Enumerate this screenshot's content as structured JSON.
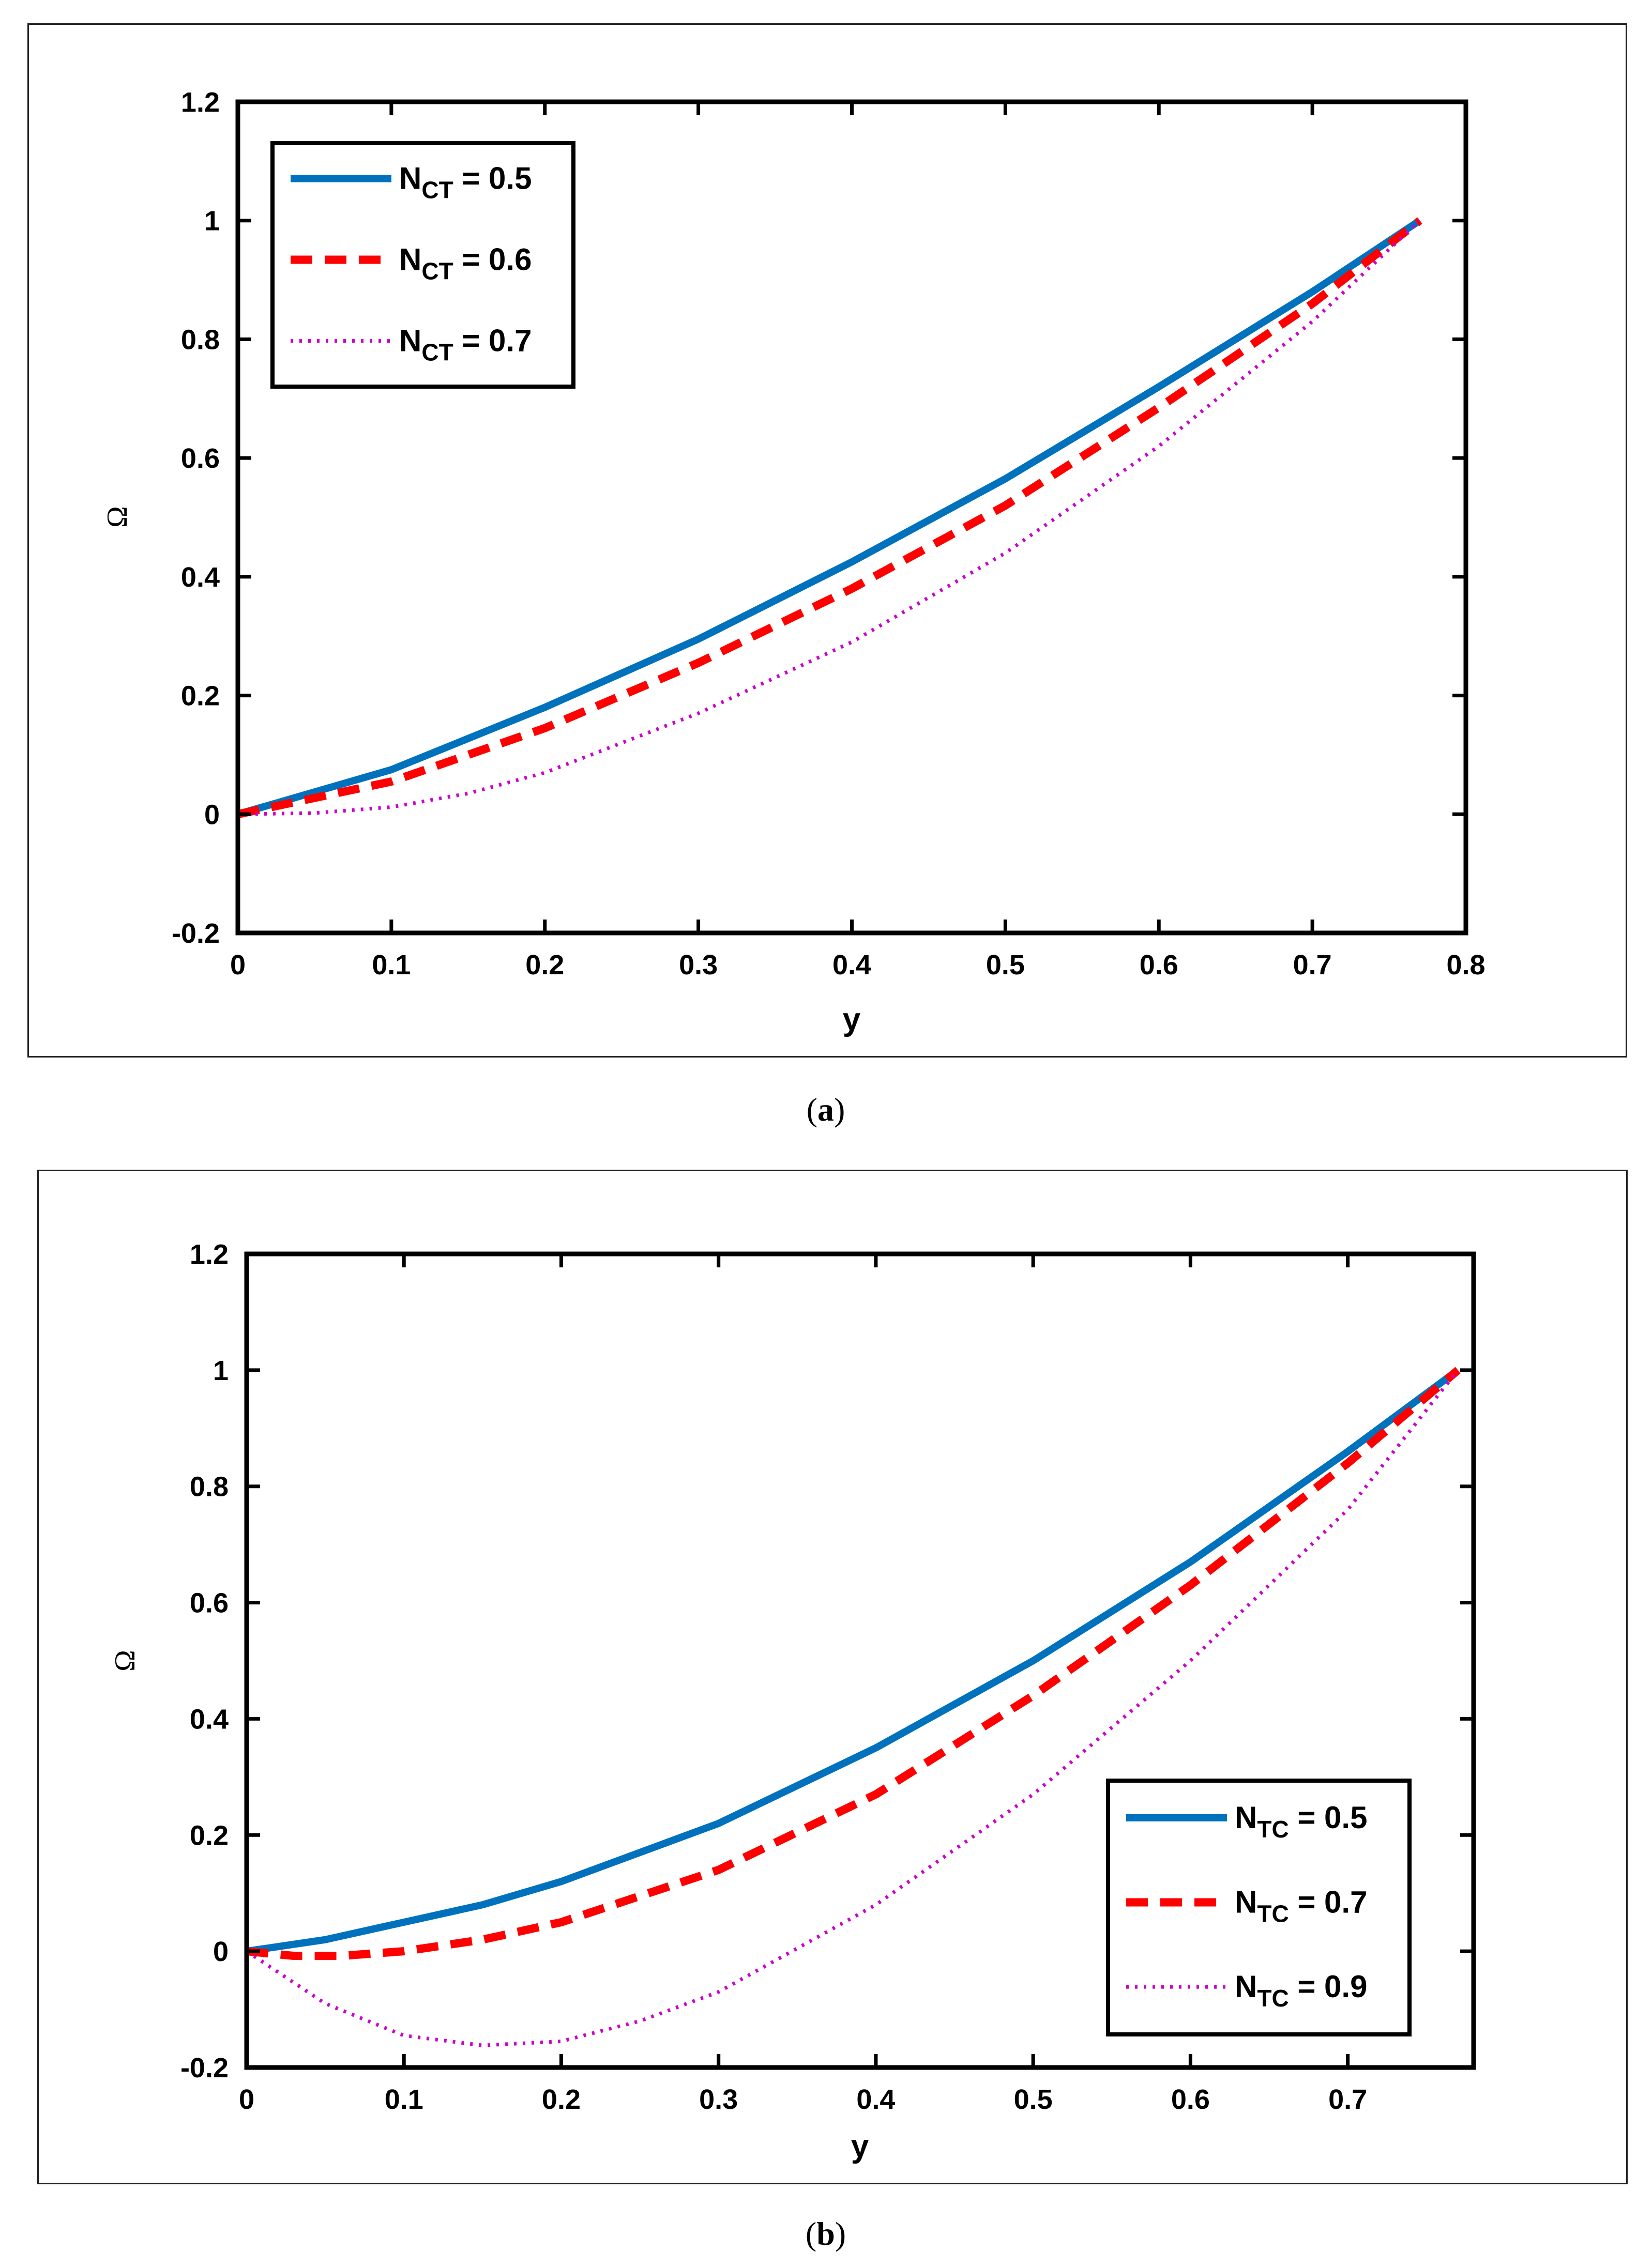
{
  "chart_data": [
    {
      "type": "line",
      "panel": "a",
      "caption_open": "(",
      "caption_letter": "a",
      "caption_close": ")",
      "xlabel": "y",
      "ylabel": "Ω",
      "xlim": [
        0,
        0.8
      ],
      "ylim": [
        -0.2,
        1.2
      ],
      "xticks": [
        0,
        0.1,
        0.2,
        0.3,
        0.4,
        0.5,
        0.6,
        0.7,
        0.8
      ],
      "xtick_labels": [
        "0",
        "0.1",
        "0.2",
        "0.3",
        "0.4",
        "0.5",
        "0.6",
        "0.7",
        "0.8"
      ],
      "yticks": [
        -0.2,
        0,
        0.2,
        0.4,
        0.6,
        0.8,
        1,
        1.2
      ],
      "ytick_labels": [
        "-0.2",
        "0",
        "0.2",
        "0.4",
        "0.6",
        "0.8",
        "1",
        "1.2"
      ],
      "legend_position": "top-left",
      "series": [
        {
          "name": "N_CT = 0.5",
          "symbol": "N",
          "subscript": "CT",
          "value_text": " = 0.5",
          "color": "#0072BD",
          "style": "solid",
          "x": [
            0,
            0.1,
            0.2,
            0.3,
            0.4,
            0.5,
            0.6,
            0.7,
            0.77
          ],
          "y": [
            0,
            0.075,
            0.18,
            0.295,
            0.425,
            0.565,
            0.72,
            0.88,
            1.0
          ]
        },
        {
          "name": "N_CT = 0.6",
          "symbol": "N",
          "subscript": "CT",
          "value_text": " = 0.6",
          "color": "#FF0000",
          "style": "dashed",
          "x": [
            0,
            0.1,
            0.2,
            0.3,
            0.4,
            0.5,
            0.6,
            0.7,
            0.77
          ],
          "y": [
            0,
            0.055,
            0.145,
            0.255,
            0.38,
            0.52,
            0.685,
            0.86,
            1.0
          ]
        },
        {
          "name": "N_CT = 0.7",
          "symbol": "N",
          "subscript": "CT",
          "value_text": "  = 0.7",
          "color": "#CC00CC",
          "style": "dotted",
          "x": [
            0,
            0.05,
            0.1,
            0.15,
            0.2,
            0.3,
            0.4,
            0.5,
            0.6,
            0.7,
            0.77
          ],
          "y": [
            0,
            0.002,
            0.012,
            0.035,
            0.07,
            0.17,
            0.29,
            0.44,
            0.62,
            0.83,
            1.0
          ]
        }
      ]
    },
    {
      "type": "line",
      "panel": "b",
      "caption_open": "(",
      "caption_letter": "b",
      "caption_close": ")",
      "xlabel": "y",
      "ylabel": "Ω",
      "xlim": [
        0,
        0.78
      ],
      "ylim": [
        -0.2,
        1.2
      ],
      "xticks": [
        0,
        0.1,
        0.2,
        0.3,
        0.4,
        0.5,
        0.6,
        0.7
      ],
      "xtick_labels": [
        "0",
        "0.1",
        "0.2",
        "0.3",
        "0.4",
        "0.5",
        "0.6",
        "0.7"
      ],
      "yticks": [
        -0.2,
        0,
        0.2,
        0.4,
        0.6,
        0.8,
        1,
        1.2
      ],
      "ytick_labels": [
        "-0.2",
        "0",
        "0.2",
        "0.4",
        "0.6",
        "0.8",
        "1",
        "1.2"
      ],
      "legend_position": "bottom-right",
      "series": [
        {
          "name": "N_TC = 0.5",
          "symbol": "N",
          "subscript": "TC",
          "value_text": " = 0.5",
          "color": "#0072BD",
          "style": "solid",
          "x": [
            0,
            0.05,
            0.1,
            0.15,
            0.2,
            0.3,
            0.4,
            0.5,
            0.6,
            0.7,
            0.77
          ],
          "y": [
            0,
            0.02,
            0.05,
            0.08,
            0.12,
            0.22,
            0.35,
            0.5,
            0.67,
            0.86,
            1.0
          ]
        },
        {
          "name": "N_TC = 0.7",
          "symbol": "N",
          "subscript": "TC",
          "value_text": " = 0.7",
          "color": "#FF0000",
          "style": "dashed",
          "x": [
            0,
            0.03,
            0.06,
            0.1,
            0.15,
            0.2,
            0.3,
            0.4,
            0.5,
            0.6,
            0.7,
            0.77
          ],
          "y": [
            0,
            -0.008,
            -0.008,
            0.0,
            0.02,
            0.05,
            0.14,
            0.27,
            0.44,
            0.63,
            0.84,
            1.0
          ]
        },
        {
          "name": "N_TC = 0.9",
          "symbol": "N",
          "subscript": "TC",
          "value_text": " = 0.9",
          "color": "#CC00CC",
          "style": "dotted",
          "x": [
            0,
            0.05,
            0.1,
            0.15,
            0.2,
            0.25,
            0.3,
            0.4,
            0.5,
            0.6,
            0.7,
            0.77
          ],
          "y": [
            0,
            -0.09,
            -0.145,
            -0.162,
            -0.155,
            -0.12,
            -0.07,
            0.08,
            0.27,
            0.5,
            0.76,
            1.0
          ]
        }
      ]
    }
  ]
}
